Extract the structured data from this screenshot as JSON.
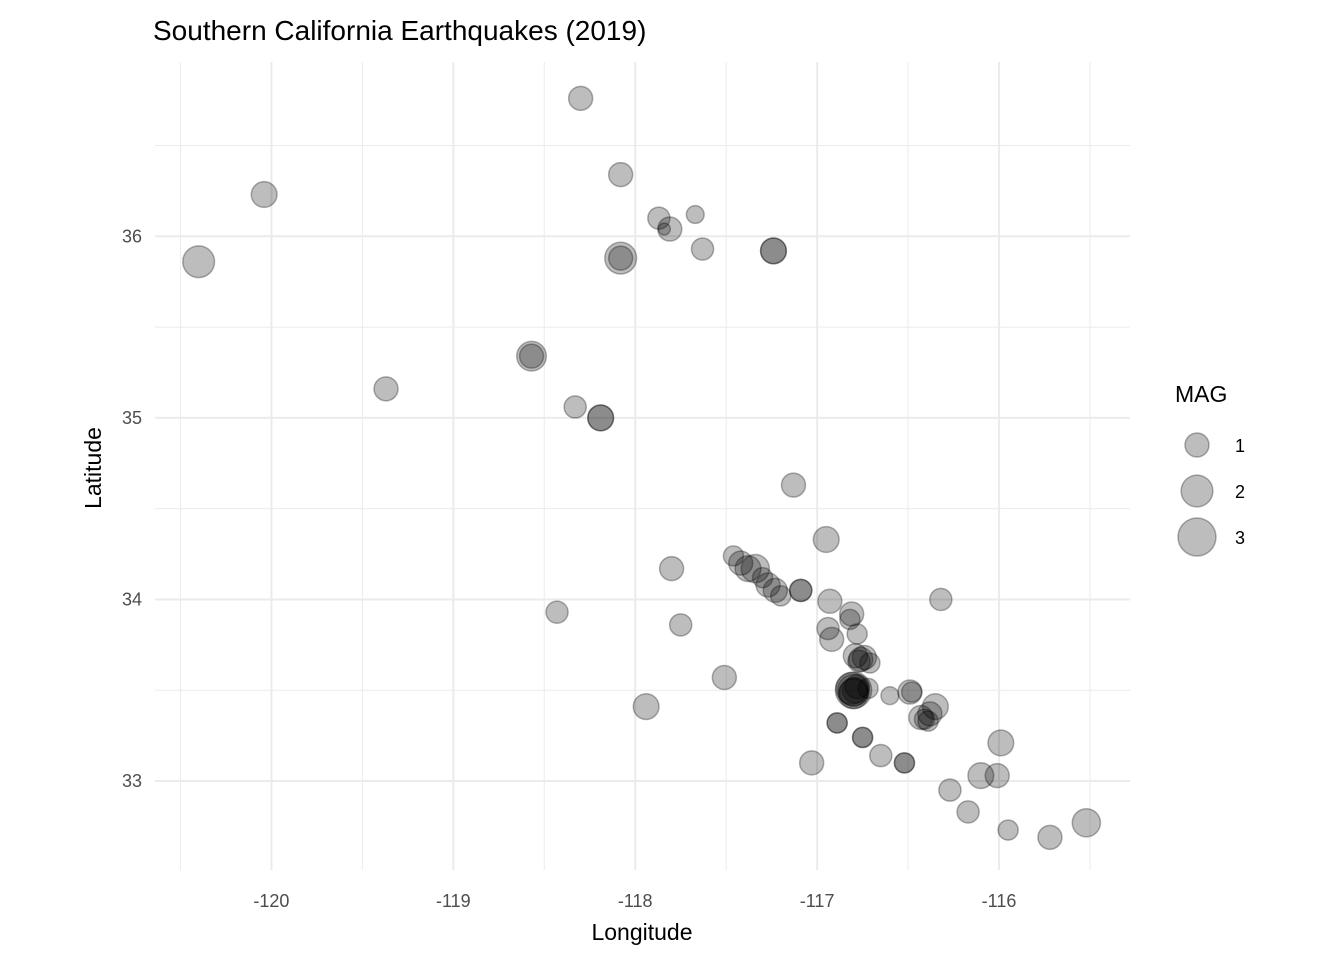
{
  "chart_data": {
    "type": "scatter",
    "title": "Southern California Earthquakes (2019)",
    "xlabel": "Longitude",
    "ylabel": "Latitude",
    "xlim": [
      -120.64,
      -115.28
    ],
    "ylim": [
      32.51,
      36.96
    ],
    "x_ticks": [
      -120,
      -119,
      -118,
      -117,
      -116
    ],
    "y_ticks": [
      33,
      34,
      35,
      36
    ],
    "grid": true,
    "point_color": "#000000",
    "point_alpha": 0.26,
    "legend": {
      "title": "MAG",
      "placement": "right",
      "entries": [
        1,
        2,
        3
      ]
    },
    "points": [
      {
        "lon": -118.3,
        "lat": 36.76,
        "mag": 1.0
      },
      {
        "lon": -118.08,
        "lat": 36.34,
        "mag": 1.0
      },
      {
        "lon": -120.04,
        "lat": 36.23,
        "mag": 1.2
      },
      {
        "lon": -120.4,
        "lat": 35.86,
        "mag": 2.0
      },
      {
        "lon": -117.87,
        "lat": 36.1,
        "mag": 0.8
      },
      {
        "lon": -117.81,
        "lat": 36.04,
        "mag": 1.0
      },
      {
        "lon": -117.84,
        "lat": 36.04,
        "mag": 0.0
      },
      {
        "lon": -117.67,
        "lat": 36.12,
        "mag": 0.4
      },
      {
        "lon": -118.08,
        "lat": 35.88,
        "mag": 2.0
      },
      {
        "lon": -118.08,
        "lat": 35.88,
        "mag": 1.0
      },
      {
        "lon": -117.63,
        "lat": 35.93,
        "mag": 0.8
      },
      {
        "lon": -117.24,
        "lat": 35.92,
        "mag": 1.2
      },
      {
        "lon": -117.24,
        "lat": 35.92,
        "mag": 1.2
      },
      {
        "lon": -118.57,
        "lat": 35.34,
        "mag": 1.7
      },
      {
        "lon": -118.57,
        "lat": 35.34,
        "mag": 1.0
      },
      {
        "lon": -119.37,
        "lat": 35.16,
        "mag": 1.0
      },
      {
        "lon": -118.33,
        "lat": 35.06,
        "mag": 0.8
      },
      {
        "lon": -118.19,
        "lat": 35.0,
        "mag": 1.2
      },
      {
        "lon": -118.19,
        "lat": 35.0,
        "mag": 1.2
      },
      {
        "lon": -117.13,
        "lat": 34.63,
        "mag": 1.0
      },
      {
        "lon": -116.95,
        "lat": 34.33,
        "mag": 1.2
      },
      {
        "lon": -117.46,
        "lat": 34.24,
        "mag": 0.6
      },
      {
        "lon": -117.42,
        "lat": 34.2,
        "mag": 1.0
      },
      {
        "lon": -117.34,
        "lat": 34.17,
        "mag": 1.5
      },
      {
        "lon": -117.38,
        "lat": 34.17,
        "mag": 1.2
      },
      {
        "lon": -117.3,
        "lat": 34.12,
        "mag": 0.6
      },
      {
        "lon": -117.27,
        "lat": 34.08,
        "mag": 1.0
      },
      {
        "lon": -117.23,
        "lat": 34.05,
        "mag": 1.0
      },
      {
        "lon": -117.2,
        "lat": 34.02,
        "mag": 0.6
      },
      {
        "lon": -117.09,
        "lat": 34.05,
        "mag": 0.8
      },
      {
        "lon": -117.09,
        "lat": 34.05,
        "mag": 0.8
      },
      {
        "lon": -116.93,
        "lat": 33.99,
        "mag": 1.0
      },
      {
        "lon": -116.32,
        "lat": 34.0,
        "mag": 0.8
      },
      {
        "lon": -116.81,
        "lat": 33.92,
        "mag": 1.0
      },
      {
        "lon": -116.82,
        "lat": 33.89,
        "mag": 0.6
      },
      {
        "lon": -116.94,
        "lat": 33.84,
        "mag": 0.8
      },
      {
        "lon": -116.92,
        "lat": 33.78,
        "mag": 1.0
      },
      {
        "lon": -116.78,
        "lat": 33.81,
        "mag": 0.6
      },
      {
        "lon": -116.79,
        "lat": 33.69,
        "mag": 1.0
      },
      {
        "lon": -116.76,
        "lat": 33.67,
        "mag": 1.0
      },
      {
        "lon": -116.74,
        "lat": 33.68,
        "mag": 1.0
      },
      {
        "lon": -116.71,
        "lat": 33.65,
        "mag": 0.6
      },
      {
        "lon": -116.77,
        "lat": 33.66,
        "mag": 0.8
      },
      {
        "lon": -116.8,
        "lat": 33.5,
        "mag": 2.7
      },
      {
        "lon": -116.8,
        "lat": 33.5,
        "mag": 2.0
      },
      {
        "lon": -116.8,
        "lat": 33.49,
        "mag": 1.5
      },
      {
        "lon": -116.81,
        "lat": 33.51,
        "mag": 2.0
      },
      {
        "lon": -116.79,
        "lat": 33.5,
        "mag": 1.2
      },
      {
        "lon": -116.8,
        "lat": 33.48,
        "mag": 1.7
      },
      {
        "lon": -116.78,
        "lat": 33.52,
        "mag": 1.0
      },
      {
        "lon": -116.72,
        "lat": 33.51,
        "mag": 0.6
      },
      {
        "lon": -116.6,
        "lat": 33.47,
        "mag": 0.4
      },
      {
        "lon": -116.49,
        "lat": 33.49,
        "mag": 1.0
      },
      {
        "lon": -116.48,
        "lat": 33.49,
        "mag": 0.6
      },
      {
        "lon": -116.43,
        "lat": 33.35,
        "mag": 1.0
      },
      {
        "lon": -116.38,
        "lat": 33.37,
        "mag": 1.0
      },
      {
        "lon": -116.35,
        "lat": 33.41,
        "mag": 1.2
      },
      {
        "lon": -116.39,
        "lat": 33.33,
        "mag": 0.6
      },
      {
        "lon": -116.41,
        "lat": 33.34,
        "mag": 0.6
      },
      {
        "lon": -116.89,
        "lat": 33.32,
        "mag": 0.6
      },
      {
        "lon": -116.89,
        "lat": 33.32,
        "mag": 0.6
      },
      {
        "lon": -116.75,
        "lat": 33.24,
        "mag": 0.6
      },
      {
        "lon": -116.75,
        "lat": 33.24,
        "mag": 0.6
      },
      {
        "lon": -116.65,
        "lat": 33.14,
        "mag": 0.8
      },
      {
        "lon": -116.52,
        "lat": 33.1,
        "mag": 0.6
      },
      {
        "lon": -116.52,
        "lat": 33.1,
        "mag": 0.6
      },
      {
        "lon": -117.03,
        "lat": 33.1,
        "mag": 1.0
      },
      {
        "lon": -115.99,
        "lat": 33.21,
        "mag": 1.2
      },
      {
        "lon": -116.1,
        "lat": 33.03,
        "mag": 1.2
      },
      {
        "lon": -116.01,
        "lat": 33.03,
        "mag": 1.0
      },
      {
        "lon": -116.27,
        "lat": 32.95,
        "mag": 0.8
      },
      {
        "lon": -116.17,
        "lat": 32.83,
        "mag": 0.8
      },
      {
        "lon": -115.95,
        "lat": 32.73,
        "mag": 0.6
      },
      {
        "lon": -115.72,
        "lat": 32.69,
        "mag": 1.0
      },
      {
        "lon": -115.52,
        "lat": 32.77,
        "mag": 1.5
      },
      {
        "lon": -117.51,
        "lat": 33.57,
        "mag": 1.0
      },
      {
        "lon": -117.94,
        "lat": 33.41,
        "mag": 1.2
      },
      {
        "lon": -117.8,
        "lat": 34.17,
        "mag": 1.0
      },
      {
        "lon": -117.75,
        "lat": 33.86,
        "mag": 0.8
      },
      {
        "lon": -118.43,
        "lat": 33.93,
        "mag": 0.8
      }
    ]
  }
}
